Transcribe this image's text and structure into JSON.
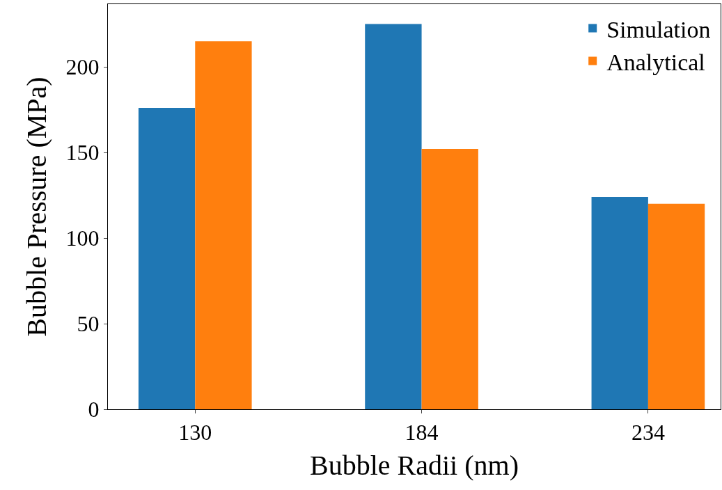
{
  "chart_data": {
    "type": "bar",
    "xlabel": "Bubble Radii (nm)",
    "ylabel": "Bubble Pressure (MPa)",
    "categories": [
      "130",
      "184",
      "234"
    ],
    "series": [
      {
        "name": "Simulation",
        "color": "#1f77b4",
        "values": [
          176,
          225,
          124
        ]
      },
      {
        "name": "Analytical",
        "color": "#ff7f0e",
        "values": [
          215,
          152,
          120
        ]
      }
    ],
    "ylim": [
      0,
      236.6
    ],
    "yticks": [
      0,
      50,
      100,
      150,
      200
    ],
    "legend": "top right"
  }
}
